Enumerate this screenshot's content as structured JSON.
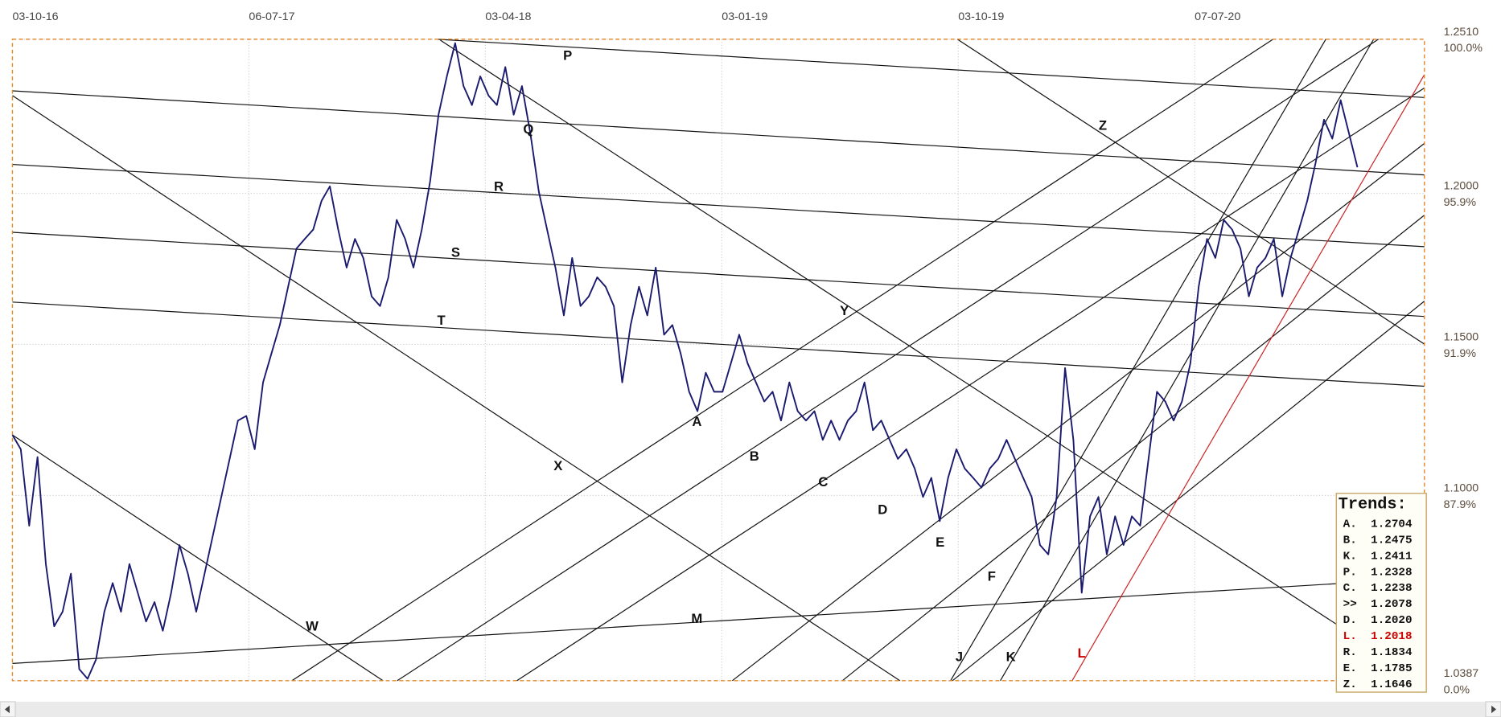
{
  "chart_data": {
    "type": "line",
    "xticks": [
      "03-10-16",
      "06-07-17",
      "03-04-18",
      "03-01-19",
      "03-10-19",
      "07-07-20"
    ],
    "ylim": [
      1.0387,
      1.251
    ],
    "yticks": [
      {
        "value": 1.251,
        "label": "1.2510"
      },
      {
        "value": 1.2,
        "label": "1.2000"
      },
      {
        "value": 1.15,
        "label": "1.1500"
      },
      {
        "value": 1.1,
        "label": "1.1000"
      },
      1.0387
    ],
    "percent_labels": [
      "100.0%",
      "95.9%",
      "91.9%",
      "87.9%",
      "0.0%"
    ],
    "grid": true,
    "color": "#1a1a6e",
    "values": [
      1.12,
      1.1153,
      1.09,
      1.1127,
      1.0773,
      1.0567,
      1.0615,
      1.0741,
      1.0425,
      1.0393,
      1.0457,
      1.0615,
      1.071,
      1.0615,
      1.0773,
      1.0678,
      1.0583,
      1.0647,
      1.0552,
      1.0678,
      1.0836,
      1.0741,
      1.0615,
      1.0741,
      1.0868,
      1.0995,
      1.1121,
      1.1248,
      1.1263,
      1.1153,
      1.1374,
      1.1469,
      1.1564,
      1.1691,
      1.1817,
      1.1849,
      1.188,
      1.1975,
      1.2023,
      1.188,
      1.1754,
      1.1849,
      1.1786,
      1.1659,
      1.1627,
      1.1722,
      1.1912,
      1.1849,
      1.1754,
      1.188,
      1.2039,
      1.226,
      1.2387,
      1.2497,
      1.2355,
      1.2292,
      1.2387,
      1.2323,
      1.2292,
      1.2418,
      1.226,
      1.2355,
      1.2197,
      1.2007,
      1.188,
      1.1754,
      1.1596,
      1.1786,
      1.1627,
      1.1659,
      1.1722,
      1.1691,
      1.1627,
      1.1374,
      1.1564,
      1.1691,
      1.1596,
      1.1754,
      1.1532,
      1.1564,
      1.1469,
      1.1343,
      1.1279,
      1.1406,
      1.1343,
      1.1343,
      1.1437,
      1.1532,
      1.1437,
      1.1374,
      1.1311,
      1.1343,
      1.1248,
      1.1374,
      1.1279,
      1.1248,
      1.1279,
      1.1184,
      1.1248,
      1.1184,
      1.1248,
      1.1279,
      1.1374,
      1.1216,
      1.1248,
      1.1184,
      1.1121,
      1.1153,
      1.1089,
      1.0995,
      1.1058,
      1.0915,
      1.1058,
      1.1153,
      1.1089,
      1.1058,
      1.1026,
      1.1089,
      1.1121,
      1.1184,
      1.1121,
      1.1058,
      1.0995,
      1.0836,
      1.0805,
      1.0995,
      1.1422,
      1.1184,
      1.0678,
      1.0931,
      1.0995,
      1.0805,
      1.0931,
      1.0836,
      1.0931,
      1.09,
      1.1121,
      1.1343,
      1.1311,
      1.1248,
      1.1311,
      1.1437,
      1.1691,
      1.1849,
      1.1786,
      1.1912,
      1.188,
      1.1817,
      1.1659,
      1.1754,
      1.1786,
      1.1849,
      1.1659,
      1.1786,
      1.188,
      1.1975,
      1.2102,
      1.2244,
      1.2181,
      1.2308,
      1.2197,
      1.2086
    ],
    "annotations": [
      "P",
      "Q",
      "R",
      "S",
      "T",
      "A",
      "B",
      "C",
      "D",
      "E",
      "F",
      "J",
      "K",
      "L",
      "M",
      "W",
      "X",
      "Y",
      "Z"
    ],
    "trends": {
      "title": "Trends:",
      "rows": [
        {
          "key": "A.",
          "value": "1.2704"
        },
        {
          "key": "B.",
          "value": "1.2475"
        },
        {
          "key": "K.",
          "value": "1.2411"
        },
        {
          "key": "P.",
          "value": "1.2328"
        },
        {
          "key": "C.",
          "value": "1.2238"
        },
        {
          "key": ">>",
          "value": "1.2078"
        },
        {
          "key": "D.",
          "value": "1.2020"
        },
        {
          "key": "L.",
          "value": "1.2018",
          "color": "#cc0000"
        },
        {
          "key": "R.",
          "value": "1.1834"
        },
        {
          "key": "E.",
          "value": "1.1785"
        },
        {
          "key": "Z.",
          "value": "1.1646"
        }
      ]
    }
  }
}
